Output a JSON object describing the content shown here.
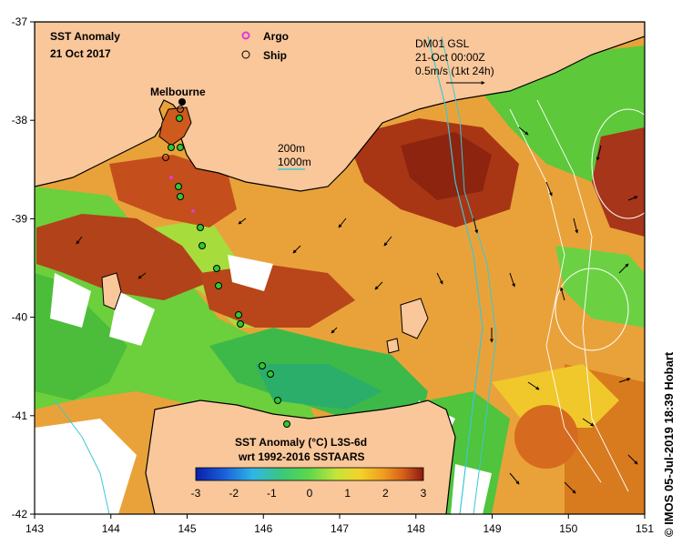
{
  "title": "SST Anomaly",
  "date": "21 Oct 2017",
  "legend": {
    "argo": "Argo",
    "ship": "Ship"
  },
  "place_label": "Melbourne",
  "current_info": {
    "line1": "DM01 GSL",
    "line2": "21-Oct 00:00Z",
    "line3": "0.5m/s (1kt 24h)"
  },
  "isobaths": {
    "shallow": "200m",
    "deep": "1000m"
  },
  "colorbar": {
    "title_line1": "SST Anomaly (°C) L3S-6d",
    "title_line2": "wrt 1992-2016 SSTAARS",
    "ticks": [
      -3,
      -2,
      -1,
      0,
      1,
      2,
      3
    ]
  },
  "axes": {
    "lon_ticks": [
      143,
      144,
      145,
      146,
      147,
      148,
      149,
      150,
      151
    ],
    "lat_ticks": [
      -37,
      -38,
      -39,
      -40,
      -41,
      -42
    ],
    "lon_range": [
      143,
      151
    ],
    "lat_range": [
      -42,
      -37
    ]
  },
  "credit": "© IMOS 05-Jul-2019 18:39 Hobart",
  "colors": {
    "land": "#f9c79a",
    "coastline": "#000000",
    "isobath": "#3cc7d4",
    "argo": "#e23ad6",
    "ship_marker": "#32c832"
  }
}
